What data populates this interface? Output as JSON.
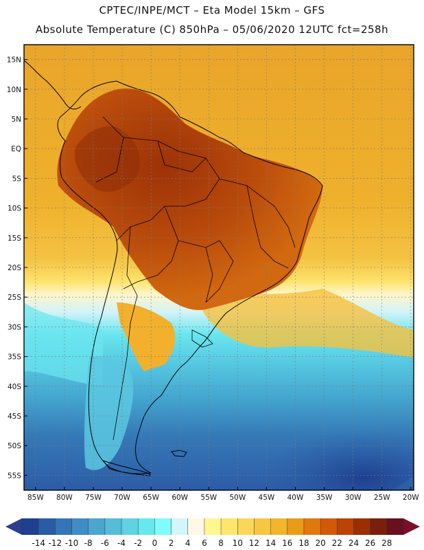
{
  "title_line1": "CPTEC/INPE/MCT –  Eta Model 15km – GFS",
  "title_line2": "Absolute Temperature (C) 850hPa – 05/06/2020 12UTC fct=258h",
  "lat_ticks": [
    {
      "value": 15,
      "label": "15N"
    },
    {
      "value": 10,
      "label": "10N"
    },
    {
      "value": 5,
      "label": "5N"
    },
    {
      "value": 0,
      "label": "EQ"
    },
    {
      "value": -5,
      "label": "5S"
    },
    {
      "value": -10,
      "label": "10S"
    },
    {
      "value": -15,
      "label": "15S"
    },
    {
      "value": -20,
      "label": "20S"
    },
    {
      "value": -25,
      "label": "25S"
    },
    {
      "value": -30,
      "label": "30S"
    },
    {
      "value": -35,
      "label": "35S"
    },
    {
      "value": -40,
      "label": "40S"
    },
    {
      "value": -45,
      "label": "45S"
    },
    {
      "value": -50,
      "label": "50S"
    },
    {
      "value": -55,
      "label": "55S"
    }
  ],
  "lon_ticks": [
    {
      "value": -85,
      "label": "85W"
    },
    {
      "value": -80,
      "label": "80W"
    },
    {
      "value": -75,
      "label": "75W"
    },
    {
      "value": -70,
      "label": "70W"
    },
    {
      "value": -65,
      "label": "65W"
    },
    {
      "value": -60,
      "label": "60W"
    },
    {
      "value": -55,
      "label": "55W"
    },
    {
      "value": -50,
      "label": "50W"
    },
    {
      "value": -45,
      "label": "45W"
    },
    {
      "value": -40,
      "label": "40W"
    },
    {
      "value": -35,
      "label": "35W"
    },
    {
      "value": -30,
      "label": "30W"
    },
    {
      "value": -25,
      "label": "25W"
    },
    {
      "value": -20,
      "label": "20W"
    }
  ],
  "colorbar": {
    "colors": [
      "#1f3f8f",
      "#2a5ca6",
      "#3475b5",
      "#3f8dc4",
      "#4ca5cf",
      "#55bcd9",
      "#5fd2e4",
      "#66e8ef",
      "#7ffcfc",
      "#d2f6fa",
      "#fff8e6",
      "#fff78f",
      "#fde66a",
      "#fbd65a",
      "#f7c642",
      "#f2b52c",
      "#ea9b18",
      "#e1780d",
      "#d15a08",
      "#bc4206",
      "#9c2e06",
      "#7a1f0b",
      "#6a0f1e"
    ],
    "labels": [
      "-14",
      "-12",
      "-10",
      "-8",
      "-6",
      "-4",
      "-2",
      "0",
      "2",
      "4",
      "6",
      "8",
      "10",
      "12",
      "14",
      "16",
      "18",
      "20",
      "22",
      "24",
      "26",
      "28"
    ]
  },
  "map_colors": {
    "ocean_north": "#efae29",
    "land_hot": "#a8400b",
    "land_warm": "#d8680c",
    "cold_ocean_deep": "#2c5ea8",
    "cold_ocean_mid": "#4aa6cf",
    "cyan": "#5ee0ee"
  }
}
